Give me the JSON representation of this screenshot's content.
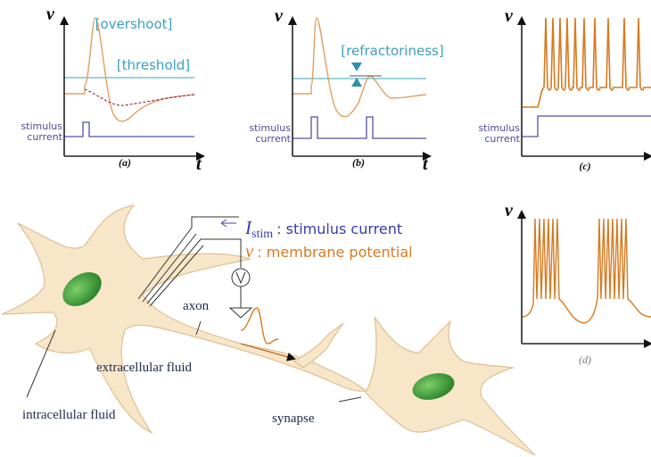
{
  "panels": [
    {
      "label": "(a)",
      "y_axis": "v",
      "x_axis": "t",
      "annotations": [
        "[overshoot]",
        "[threshold]"
      ],
      "stimulus": [
        "stimulus",
        "current"
      ]
    },
    {
      "label": "(b)",
      "y_axis": "v",
      "x_axis": "t",
      "annotations": [
        "[refractoriness]"
      ],
      "stimulus": [
        "stimulus",
        "current"
      ]
    },
    {
      "label": "(c)",
      "y_axis": "v",
      "stimulus": [
        "stimulus",
        "current"
      ]
    },
    {
      "label": "(d)",
      "y_axis": "v"
    }
  ],
  "neuron": {
    "legend": [
      {
        "symbol": "I",
        "subscript": "stim",
        "text": ": stimulus current"
      },
      {
        "symbol": "v",
        "text": ": membrane potential"
      }
    ],
    "labels": [
      "axon",
      "extracellular fluid",
      "intracellular fluid",
      "synapse"
    ]
  }
}
